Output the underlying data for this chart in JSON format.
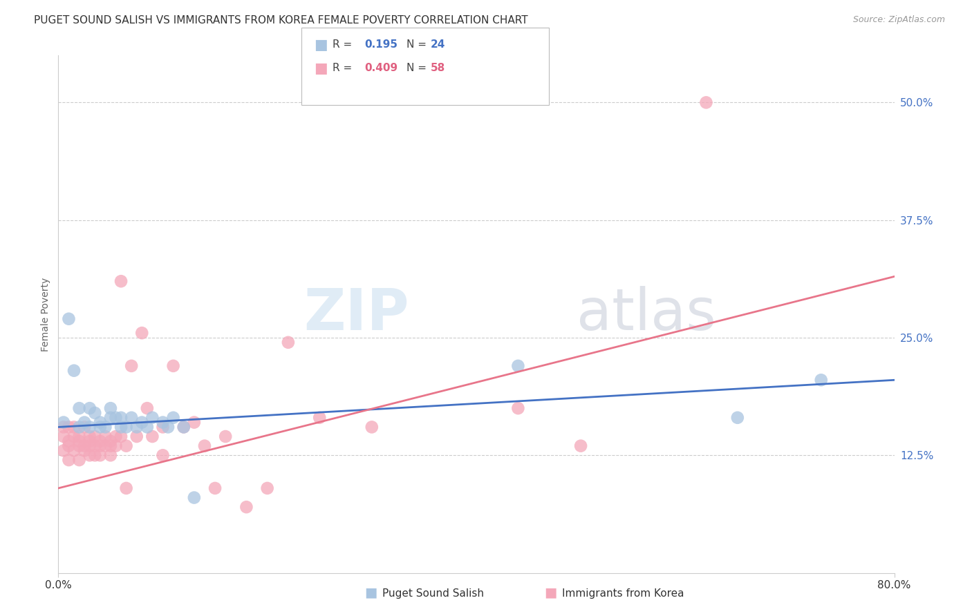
{
  "title": "PUGET SOUND SALISH VS IMMIGRANTS FROM KOREA FEMALE POVERTY CORRELATION CHART",
  "source": "Source: ZipAtlas.com",
  "ylabel": "Female Poverty",
  "xlim": [
    0.0,
    0.8
  ],
  "ylim": [
    0.0,
    0.55
  ],
  "yticks": [
    0.0,
    0.125,
    0.25,
    0.375,
    0.5
  ],
  "ytick_labels": [
    "",
    "12.5%",
    "25.0%",
    "37.5%",
    "50.0%"
  ],
  "xticks": [
    0.0,
    0.8
  ],
  "xtick_labels": [
    "0.0%",
    "80.0%"
  ],
  "grid_color": "#cccccc",
  "background_color": "#ffffff",
  "blue_color": "#a8c4e0",
  "pink_color": "#f4a7b9",
  "blue_line_color": "#4472c4",
  "pink_line_color": "#e8758a",
  "blue_scatter_x": [
    0.005,
    0.01,
    0.015,
    0.02,
    0.02,
    0.025,
    0.03,
    0.03,
    0.035,
    0.04,
    0.04,
    0.045,
    0.05,
    0.05,
    0.055,
    0.06,
    0.06,
    0.065,
    0.07,
    0.075,
    0.08,
    0.085,
    0.09,
    0.1,
    0.105,
    0.11,
    0.12,
    0.13,
    0.44,
    0.65,
    0.73
  ],
  "blue_scatter_y": [
    0.16,
    0.27,
    0.215,
    0.175,
    0.155,
    0.16,
    0.155,
    0.175,
    0.17,
    0.155,
    0.16,
    0.155,
    0.165,
    0.175,
    0.165,
    0.155,
    0.165,
    0.155,
    0.165,
    0.155,
    0.16,
    0.155,
    0.165,
    0.16,
    0.155,
    0.165,
    0.155,
    0.08,
    0.22,
    0.165,
    0.205
  ],
  "pink_scatter_x": [
    0.005,
    0.005,
    0.005,
    0.01,
    0.01,
    0.01,
    0.01,
    0.015,
    0.015,
    0.015,
    0.02,
    0.02,
    0.02,
    0.02,
    0.025,
    0.025,
    0.025,
    0.03,
    0.03,
    0.03,
    0.03,
    0.035,
    0.035,
    0.035,
    0.04,
    0.04,
    0.04,
    0.045,
    0.045,
    0.05,
    0.05,
    0.05,
    0.055,
    0.055,
    0.06,
    0.06,
    0.065,
    0.065,
    0.07,
    0.075,
    0.08,
    0.085,
    0.09,
    0.1,
    0.1,
    0.11,
    0.12,
    0.13,
    0.14,
    0.15,
    0.16,
    0.18,
    0.2,
    0.22,
    0.25,
    0.3,
    0.44,
    0.5,
    0.62
  ],
  "pink_scatter_y": [
    0.145,
    0.155,
    0.13,
    0.135,
    0.155,
    0.14,
    0.12,
    0.145,
    0.155,
    0.13,
    0.14,
    0.135,
    0.145,
    0.12,
    0.135,
    0.155,
    0.13,
    0.14,
    0.135,
    0.145,
    0.125,
    0.135,
    0.145,
    0.125,
    0.135,
    0.14,
    0.125,
    0.145,
    0.135,
    0.14,
    0.135,
    0.125,
    0.145,
    0.135,
    0.31,
    0.145,
    0.135,
    0.09,
    0.22,
    0.145,
    0.255,
    0.175,
    0.145,
    0.155,
    0.125,
    0.22,
    0.155,
    0.16,
    0.135,
    0.09,
    0.145,
    0.07,
    0.09,
    0.245,
    0.165,
    0.155,
    0.175,
    0.135,
    0.5
  ],
  "blue_line_x": [
    0.0,
    0.8
  ],
  "blue_line_y": [
    0.155,
    0.205
  ],
  "pink_line_x": [
    0.0,
    0.8
  ],
  "pink_line_y": [
    0.09,
    0.315
  ]
}
